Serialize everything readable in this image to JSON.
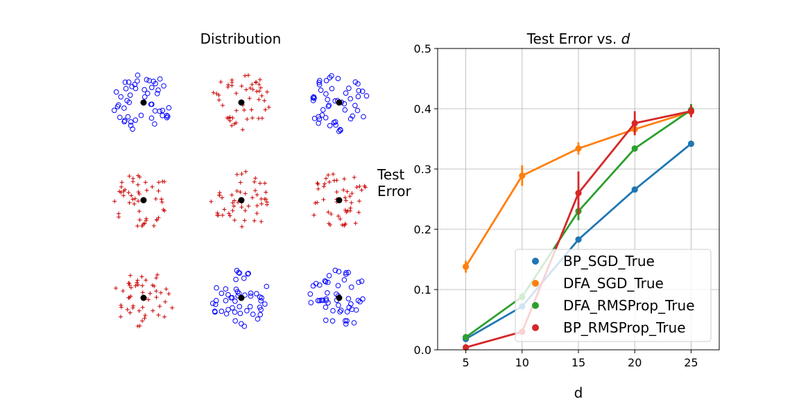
{
  "chart_data": [
    {
      "type": "scatter",
      "title": "Distribution",
      "grid": false,
      "axes_visible": false,
      "layout": "3x3 panels",
      "colors": {
        "circle": "#0000ff",
        "plus": "#cc0000",
        "center": "#000000"
      },
      "panels": [
        {
          "marker": "circle",
          "seed": 11
        },
        {
          "marker": "plus",
          "seed": 23
        },
        {
          "marker": "circle",
          "seed": 37
        },
        {
          "marker": "plus",
          "seed": 41
        },
        {
          "marker": "plus",
          "seed": 53
        },
        {
          "marker": "plus",
          "seed": 67
        },
        {
          "marker": "plus",
          "seed": 71
        },
        {
          "marker": "circle",
          "seed": 83
        },
        {
          "marker": "circle",
          "seed": 97
        }
      ]
    },
    {
      "type": "line",
      "title": "Test Error vs. ",
      "title_italic": "d",
      "xlabel": "d",
      "ylabel": [
        "Test",
        "Error"
      ],
      "x": [
        5,
        10,
        15,
        20,
        25
      ],
      "xlim": [
        2.5,
        27.5
      ],
      "ylim": [
        0,
        0.5
      ],
      "xticks": [
        "5",
        "10",
        "15",
        "20",
        "25"
      ],
      "yticks": [
        "0.0",
        "0.1",
        "0.2",
        "0.3",
        "0.4",
        "0.5"
      ],
      "grid": true,
      "legend_position": "lower-right",
      "series": [
        {
          "name": "BP_SGD_True",
          "color": "#1f77b4",
          "values": [
            0.018,
            0.072,
            0.183,
            0.266,
            0.342
          ],
          "errors": [
            0.003,
            0.004,
            0.005,
            0.004,
            0.004
          ]
        },
        {
          "name": "DFA_SGD_True",
          "color": "#ff7f0e",
          "values": [
            0.138,
            0.289,
            0.334,
            0.366,
            0.395
          ],
          "errors": [
            0.01,
            0.017,
            0.01,
            0.008,
            0.006
          ]
        },
        {
          "name": "DFA_RMSProp_True",
          "color": "#2ca02c",
          "values": [
            0.021,
            0.088,
            0.23,
            0.334,
            0.398
          ],
          "errors": [
            0.003,
            0.006,
            0.015,
            0.005,
            0.01
          ]
        },
        {
          "name": "BP_RMSProp_True",
          "color": "#d62728",
          "values": [
            0.004,
            0.03,
            0.26,
            0.376,
            0.396
          ],
          "errors": [
            0.002,
            0.005,
            0.036,
            0.02,
            0.01
          ]
        }
      ]
    }
  ]
}
